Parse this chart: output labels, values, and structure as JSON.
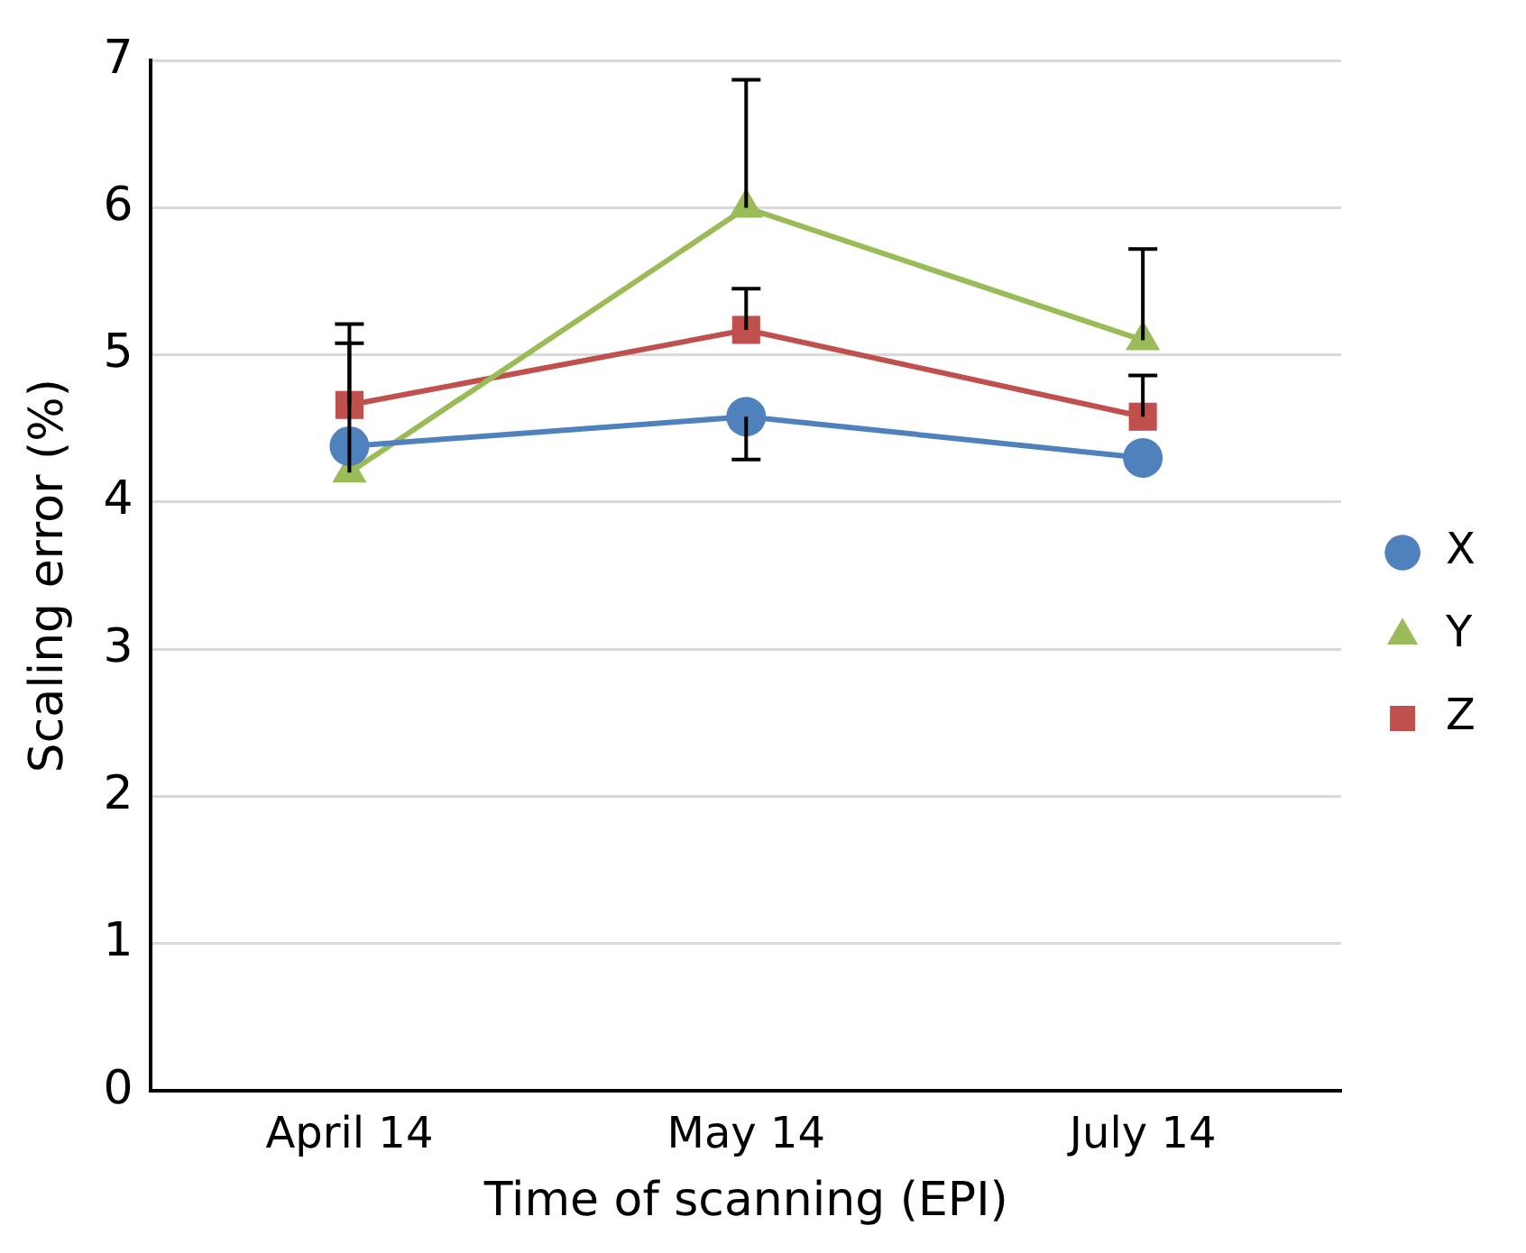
{
  "chart_data": {
    "type": "line",
    "xlabel": "Time of scanning (EPI)",
    "ylabel": "Scaling error (%)",
    "categories": [
      "April 14",
      "May 14",
      "July 14"
    ],
    "series": [
      {
        "name": "X",
        "color": "#4f81bd",
        "marker": "circle",
        "values": [
          4.38,
          4.58,
          4.3
        ],
        "errors": [
          null,
          [
            4.29,
            4.58
          ],
          null
        ]
      },
      {
        "name": "Y",
        "color": "#9bbb59",
        "marker": "triangle",
        "values": [
          4.2,
          6.0,
          5.1
        ],
        "errors": [
          [
            4.2,
            5.08
          ],
          [
            6.0,
            6.87
          ],
          [
            5.1,
            5.72
          ]
        ]
      },
      {
        "name": "Z",
        "color": "#c0504d",
        "marker": "square",
        "values": [
          4.66,
          5.17,
          4.58
        ],
        "errors": [
          [
            4.66,
            5.21
          ],
          [
            5.17,
            5.45
          ],
          [
            4.58,
            4.86
          ]
        ]
      }
    ],
    "ylim": [
      0,
      7
    ],
    "yticks": [
      0,
      1,
      2,
      3,
      4,
      5,
      6,
      7
    ],
    "grid": "y",
    "legend": "right",
    "line_style": "solid"
  }
}
